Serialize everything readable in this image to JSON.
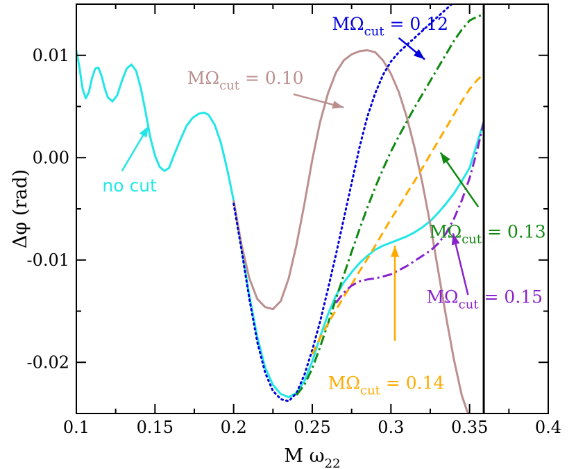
{
  "chart_data": {
    "type": "line",
    "title": "",
    "xlabel": "M ω",
    "xlabel_sub": "22",
    "ylabel": "Δφ (rad)",
    "xlim": [
      0.1,
      0.4
    ],
    "ylim": [
      -0.025,
      0.015
    ],
    "xticks": [
      0.1,
      0.15,
      0.2,
      0.25,
      0.3,
      0.35,
      0.4
    ],
    "xtick_labels": [
      "0.1",
      "0.15",
      "0.2",
      "0.25",
      "0.3",
      "0.35",
      "0.4"
    ],
    "yticks": [
      -0.02,
      -0.01,
      0.0,
      0.01
    ],
    "ytick_labels": [
      "-0.02",
      "-0.01",
      "0.00",
      "0.01"
    ],
    "grid": false,
    "vertical_line_x": 0.359,
    "series": [
      {
        "key": "nocut",
        "color": "#22e6e6",
        "style": "solid",
        "points": [
          [
            0.1,
            0.0105
          ],
          [
            0.102,
            0.0088
          ],
          [
            0.104,
            0.0067
          ],
          [
            0.106,
            0.0058
          ],
          [
            0.108,
            0.0064
          ],
          [
            0.11,
            0.0078
          ],
          [
            0.112,
            0.0087
          ],
          [
            0.114,
            0.0088
          ],
          [
            0.116,
            0.008
          ],
          [
            0.118,
            0.0068
          ],
          [
            0.12,
            0.0059
          ],
          [
            0.123,
            0.0055
          ],
          [
            0.126,
            0.0061
          ],
          [
            0.129,
            0.0075
          ],
          [
            0.132,
            0.0087
          ],
          [
            0.135,
            0.0091
          ],
          [
            0.138,
            0.0085
          ],
          [
            0.141,
            0.0068
          ],
          [
            0.144,
            0.0045
          ],
          [
            0.147,
            0.002
          ],
          [
            0.15,
            0.0002
          ],
          [
            0.153,
            -0.0009
          ],
          [
            0.156,
            -0.0013
          ],
          [
            0.159,
            -0.001
          ],
          [
            0.162,
            0.0002
          ],
          [
            0.166,
            0.0017
          ],
          [
            0.17,
            0.0031
          ],
          [
            0.174,
            0.0039
          ],
          [
            0.178,
            0.0043
          ],
          [
            0.181,
            0.0044
          ],
          [
            0.184,
            0.0042
          ],
          [
            0.188,
            0.0032
          ],
          [
            0.192,
            0.0014
          ],
          [
            0.196,
            -0.0012
          ],
          [
            0.2,
            -0.0042
          ],
          [
            0.205,
            -0.0088
          ],
          [
            0.21,
            -0.0135
          ],
          [
            0.215,
            -0.0175
          ],
          [
            0.22,
            -0.0205
          ],
          [
            0.225,
            -0.0222
          ],
          [
            0.23,
            -0.0231
          ],
          [
            0.235,
            -0.0234
          ],
          [
            0.24,
            -0.023
          ],
          [
            0.245,
            -0.0218
          ],
          [
            0.25,
            -0.0199
          ],
          [
            0.255,
            -0.0175
          ],
          [
            0.26,
            -0.0153
          ],
          [
            0.265,
            -0.0135
          ],
          [
            0.27,
            -0.0122
          ],
          [
            0.275,
            -0.0112
          ],
          [
            0.28,
            -0.0103
          ],
          [
            0.285,
            -0.0096
          ],
          [
            0.29,
            -0.009
          ],
          [
            0.295,
            -0.0086
          ],
          [
            0.3,
            -0.0083
          ],
          [
            0.305,
            -0.008
          ],
          [
            0.31,
            -0.0077
          ],
          [
            0.315,
            -0.0073
          ],
          [
            0.32,
            -0.0068
          ],
          [
            0.325,
            -0.0062
          ],
          [
            0.33,
            -0.0054
          ],
          [
            0.335,
            -0.0045
          ],
          [
            0.34,
            -0.0035
          ],
          [
            0.345,
            -0.0023
          ],
          [
            0.35,
            -0.001
          ],
          [
            0.355,
            0.0015
          ],
          [
            0.357,
            0.0025
          ],
          [
            0.359,
            0.0035
          ]
        ]
      },
      {
        "key": "cut010",
        "color": "#bc8f8f",
        "style": "solid",
        "points": [
          [
            0.2,
            -0.0042
          ],
          [
            0.205,
            -0.0085
          ],
          [
            0.21,
            -0.0118
          ],
          [
            0.215,
            -0.0138
          ],
          [
            0.22,
            -0.0146
          ],
          [
            0.225,
            -0.0148
          ],
          [
            0.23,
            -0.014
          ],
          [
            0.235,
            -0.0118
          ],
          [
            0.24,
            -0.0085
          ],
          [
            0.245,
            -0.0045
          ],
          [
            0.25,
            -0.0002
          ],
          [
            0.255,
            0.0035
          ],
          [
            0.26,
            0.0063
          ],
          [
            0.265,
            0.0083
          ],
          [
            0.27,
            0.0095
          ],
          [
            0.275,
            0.0101
          ],
          [
            0.28,
            0.0104
          ],
          [
            0.285,
            0.0105
          ],
          [
            0.29,
            0.0103
          ],
          [
            0.295,
            0.0095
          ],
          [
            0.3,
            0.0082
          ],
          [
            0.305,
            0.0064
          ],
          [
            0.31,
            0.004
          ],
          [
            0.315,
            0.001
          ],
          [
            0.32,
            -0.0025
          ],
          [
            0.325,
            -0.0065
          ],
          [
            0.33,
            -0.011
          ],
          [
            0.335,
            -0.0155
          ],
          [
            0.34,
            -0.0197
          ],
          [
            0.345,
            -0.0232
          ],
          [
            0.35,
            -0.0255
          ]
        ]
      },
      {
        "key": "cut012",
        "color": "#0000dd",
        "style": "dotted",
        "points": [
          [
            0.2,
            -0.0045
          ],
          [
            0.205,
            -0.009
          ],
          [
            0.21,
            -0.0138
          ],
          [
            0.215,
            -0.018
          ],
          [
            0.22,
            -0.021
          ],
          [
            0.225,
            -0.0228
          ],
          [
            0.23,
            -0.0236
          ],
          [
            0.235,
            -0.0238
          ],
          [
            0.24,
            -0.023
          ],
          [
            0.245,
            -0.0212
          ],
          [
            0.25,
            -0.0188
          ],
          [
            0.255,
            -0.016
          ],
          [
            0.26,
            -0.0128
          ],
          [
            0.265,
            -0.0095
          ],
          [
            0.27,
            -0.006
          ],
          [
            0.275,
            -0.0025
          ],
          [
            0.28,
            0.001
          ],
          [
            0.285,
            0.004
          ],
          [
            0.29,
            0.0063
          ],
          [
            0.295,
            0.0081
          ],
          [
            0.3,
            0.0094
          ],
          [
            0.305,
            0.0103
          ],
          [
            0.31,
            0.011
          ],
          [
            0.315,
            0.0117
          ],
          [
            0.32,
            0.0124
          ],
          [
            0.325,
            0.0131
          ],
          [
            0.33,
            0.0138
          ],
          [
            0.335,
            0.0145
          ],
          [
            0.34,
            0.0152
          ],
          [
            0.345,
            0.016
          ]
        ]
      },
      {
        "key": "cut013",
        "color": "#118811",
        "style": "dashdot",
        "points": [
          [
            0.24,
            -0.0232
          ],
          [
            0.245,
            -0.0222
          ],
          [
            0.25,
            -0.0206
          ],
          [
            0.255,
            -0.0185
          ],
          [
            0.26,
            -0.0162
          ],
          [
            0.265,
            -0.0138
          ],
          [
            0.27,
            -0.0115
          ],
          [
            0.275,
            -0.0092
          ],
          [
            0.28,
            -0.007
          ],
          [
            0.285,
            -0.0049
          ],
          [
            0.29,
            -0.0029
          ],
          [
            0.295,
            -0.0011
          ],
          [
            0.3,
            0.0006
          ],
          [
            0.305,
            0.0021
          ],
          [
            0.31,
            0.0035
          ],
          [
            0.315,
            0.0049
          ],
          [
            0.32,
            0.0062
          ],
          [
            0.325,
            0.0075
          ],
          [
            0.33,
            0.0088
          ],
          [
            0.335,
            0.0101
          ],
          [
            0.34,
            0.0114
          ],
          [
            0.345,
            0.0125
          ],
          [
            0.35,
            0.0134
          ],
          [
            0.355,
            0.0138
          ],
          [
            0.359,
            0.014
          ]
        ]
      },
      {
        "key": "cut014",
        "color": "#ffaa00",
        "style": "dashed",
        "points": [
          [
            0.25,
            -0.0192
          ],
          [
            0.255,
            -0.0176
          ],
          [
            0.26,
            -0.0162
          ],
          [
            0.265,
            -0.0149
          ],
          [
            0.27,
            -0.0136
          ],
          [
            0.275,
            -0.0124
          ],
          [
            0.28,
            -0.0111
          ],
          [
            0.285,
            -0.0099
          ],
          [
            0.29,
            -0.0086
          ],
          [
            0.295,
            -0.0073
          ],
          [
            0.3,
            -0.006
          ],
          [
            0.305,
            -0.0048
          ],
          [
            0.31,
            -0.0035
          ],
          [
            0.315,
            -0.0023
          ],
          [
            0.32,
            -0.001
          ],
          [
            0.325,
            0.0003
          ],
          [
            0.33,
            0.0016
          ],
          [
            0.335,
            0.0029
          ],
          [
            0.34,
            0.0042
          ],
          [
            0.345,
            0.0055
          ],
          [
            0.35,
            0.0067
          ],
          [
            0.355,
            0.0076
          ],
          [
            0.359,
            0.0082
          ]
        ]
      },
      {
        "key": "cut015",
        "color": "#8822cc",
        "style": "dashdot",
        "points": [
          [
            0.265,
            -0.0142
          ],
          [
            0.27,
            -0.0132
          ],
          [
            0.275,
            -0.0125
          ],
          [
            0.28,
            -0.0121
          ],
          [
            0.285,
            -0.0119
          ],
          [
            0.29,
            -0.0118
          ],
          [
            0.295,
            -0.0116
          ],
          [
            0.3,
            -0.0114
          ],
          [
            0.305,
            -0.011
          ],
          [
            0.31,
            -0.0106
          ],
          [
            0.315,
            -0.0101
          ],
          [
            0.32,
            -0.0096
          ],
          [
            0.325,
            -0.0091
          ],
          [
            0.33,
            -0.0084
          ],
          [
            0.335,
            -0.0074
          ],
          [
            0.34,
            -0.006
          ],
          [
            0.345,
            -0.0042
          ],
          [
            0.35,
            -0.002
          ],
          [
            0.355,
            0.0008
          ],
          [
            0.359,
            0.0035
          ]
        ]
      }
    ],
    "annotations": [
      {
        "key": "nocut",
        "prefix": "no cut",
        "value": "",
        "color": "#22e6e6",
        "sans": true,
        "text_at": [
          0.1165,
          -0.0033
        ],
        "arrow_from": [
          0.129,
          -0.0013
        ],
        "arrow_to": [
          0.146,
          0.0031
        ]
      },
      {
        "key": "cut010",
        "prefix": "MΩ",
        "sub": "cut",
        "value": " = 0.10",
        "color": "#bc8f8f",
        "text_at": [
          0.1705,
          0.0072
        ],
        "arrow_from": [
          0.238,
          0.0062
        ],
        "arrow_to": [
          0.27,
          0.0049
        ]
      },
      {
        "key": "cut012",
        "prefix": "MΩ",
        "sub": "cut",
        "value": " = 0.12",
        "color": "#0000dd",
        "text_at": [
          0.2625,
          0.0125
        ],
        "arrow_from": [
          0.305,
          0.0117
        ],
        "arrow_to": [
          0.3215,
          0.0096
        ]
      },
      {
        "key": "cut013",
        "prefix": "MΩ",
        "sub": "cut",
        "value": " = 0.13",
        "color": "#118811",
        "text_at": [
          0.3245,
          -0.0078
        ],
        "arrow_from": [
          0.3555,
          -0.0048
        ],
        "arrow_to": [
          0.3315,
          0.0005
        ]
      },
      {
        "key": "cut014",
        "prefix": "MΩ",
        "sub": "cut",
        "value": " = 0.14",
        "color": "#ffaa00",
        "text_at": [
          0.26,
          -0.0226
        ],
        "arrow_from": [
          0.3025,
          -0.0179
        ],
        "arrow_to": [
          0.3025,
          -0.0086
        ]
      },
      {
        "key": "cut015",
        "prefix": "MΩ",
        "sub": "cut",
        "value": " = 0.15",
        "color": "#8822cc",
        "text_at": [
          0.3225,
          -0.0142
        ],
        "arrow_from": [
          0.349,
          -0.0134
        ],
        "arrow_to": [
          0.3395,
          -0.0074
        ]
      }
    ]
  }
}
